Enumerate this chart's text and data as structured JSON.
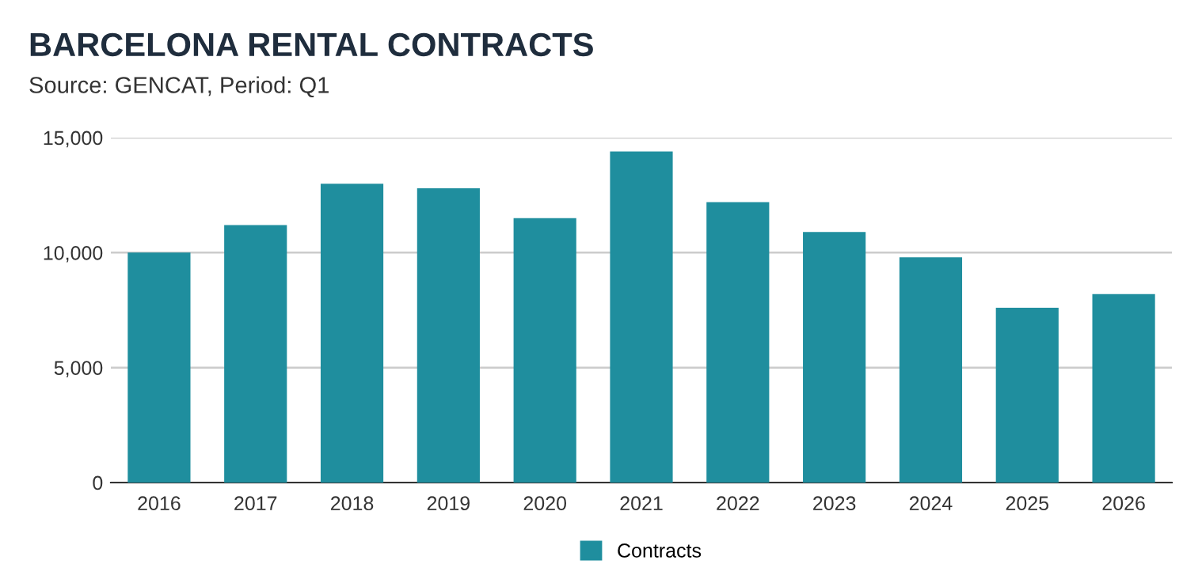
{
  "chart_data": {
    "type": "bar",
    "title": "BARCELONA RENTAL CONTRACTS",
    "subtitle": "Source: GENCAT, Period: Q1",
    "categories": [
      "2016",
      "2017",
      "2018",
      "2019",
      "2020",
      "2021",
      "2022",
      "2023",
      "2024",
      "2025",
      "2026"
    ],
    "series": [
      {
        "name": "Contracts",
        "color": "#1f8e9e",
        "values": [
          10000,
          11200,
          13000,
          12800,
          11500,
          14400,
          12200,
          10900,
          9800,
          7600,
          8200
        ]
      }
    ],
    "ylim": [
      0,
      15000
    ],
    "yticks": [
      {
        "value": 0,
        "label": "0"
      },
      {
        "value": 5000,
        "label": "5,000"
      },
      {
        "value": 10000,
        "label": "10,000"
      },
      {
        "value": 15000,
        "label": "15,000"
      }
    ],
    "grid": "y",
    "legend": "bottom"
  }
}
